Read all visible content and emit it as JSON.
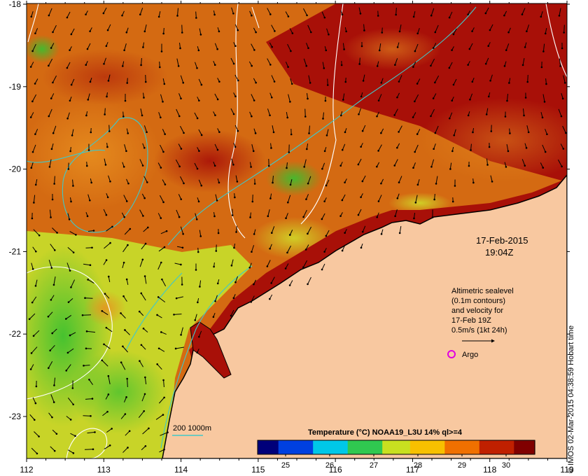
{
  "map": {
    "date_label": "17-Feb-2015",
    "time_label": "19:04Z",
    "legend_lines": [
      "Altimetric sealevel",
      "(0.1m contours)",
      "and velocity for",
      "17-Feb 19Z",
      "0.5m/s (1kt 24h)"
    ],
    "argo_label": "Argo",
    "bathymetry_label": "200  1000m",
    "colorbar_title": "Temperature (°C) NOAA19_L3U 14% ql>=4",
    "colorbar_ticks": [
      "25",
      "26",
      "27",
      "28",
      "29",
      "30"
    ],
    "x_ticks": [
      "112",
      "113",
      "114",
      "115",
      "116",
      "117",
      "118",
      "119"
    ],
    "y_ticks": [
      "-18",
      "-19",
      "-20",
      "-21",
      "-22",
      "-23"
    ],
    "credit": "© IMOS 02-Mar-2015 04:38:59 Hobart time",
    "colors": {
      "land": "#f8c8a0",
      "hot": "#a01008",
      "warm": "#d86010",
      "mid": "#e8a020",
      "cool": "#c8d828",
      "green": "#40c030",
      "coast": "#000000",
      "contour": "#ffffff",
      "isobath": "#40c8c8",
      "argo": "#e000e0"
    },
    "colorbar_stops": [
      "#00007a",
      "#0040e0",
      "#00c8e8",
      "#30c850",
      "#c8e020",
      "#f8c000",
      "#f07000",
      "#c02000",
      "#800000"
    ]
  }
}
